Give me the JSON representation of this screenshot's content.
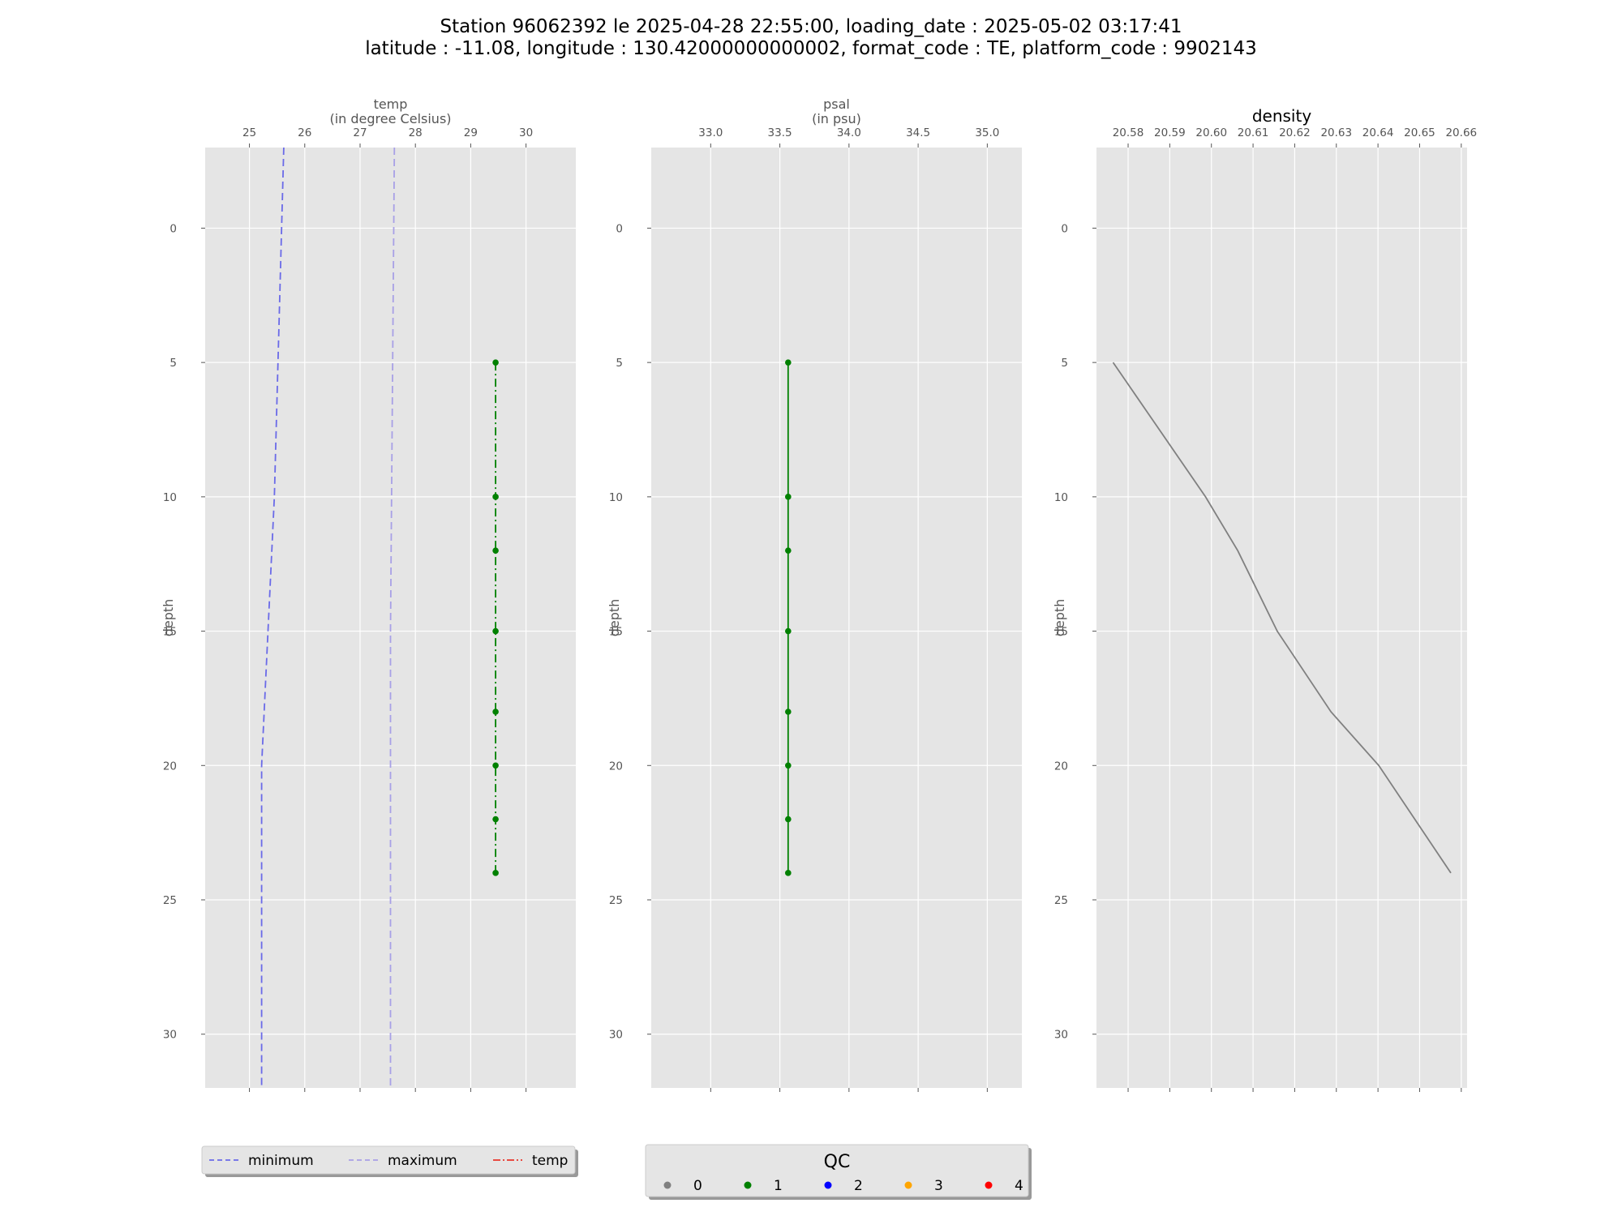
{
  "title_line1": "Station 96062392 le 2025-04-28 22:55:00, loading_date : 2025-05-02 03:17:41",
  "title_line2": "latitude : -11.08, longitude : 130.42000000000002, format_code : TE, platform_code : 9902143",
  "chart_data": [
    {
      "type": "line",
      "xlabel_line1": "temp",
      "xlabel_line2": "(in degree Celsius)",
      "ylabel": "depth",
      "xlim": [
        24.2,
        30.9
      ],
      "ylim": [
        32,
        -3
      ],
      "x_ticks": [
        25,
        26,
        27,
        28,
        29,
        30
      ],
      "x_tick_labels": [
        "25",
        "26",
        "27",
        "28",
        "29",
        "30"
      ],
      "y_ticks": [
        0,
        5,
        10,
        15,
        20,
        25,
        30
      ],
      "y_tick_labels": [
        "0",
        "5",
        "10",
        "15",
        "20",
        "25",
        "30"
      ],
      "grid": true,
      "series": [
        {
          "name": "minimum",
          "color": "#6a6ae8",
          "dash": "dashed",
          "x": [
            25.62,
            25.45,
            25.22,
            25.22
          ],
          "y": [
            -3,
            10,
            20,
            32
          ]
        },
        {
          "name": "maximum",
          "color": "#a8a0e6",
          "dash": "dashed",
          "x": [
            27.62,
            27.55,
            27.55
          ],
          "y": [
            -3,
            15,
            32
          ]
        },
        {
          "name": "temp",
          "color": "#008000",
          "dash": "dashdot",
          "markers": true,
          "x": [
            29.45,
            29.45,
            29.45,
            29.45,
            29.45,
            29.45,
            29.45,
            29.45
          ],
          "y": [
            5,
            10,
            12,
            15,
            18,
            20,
            22,
            24
          ]
        }
      ]
    },
    {
      "type": "line",
      "xlabel_line1": "psal",
      "xlabel_line2": "(in psu)",
      "ylabel": "depth",
      "xlim": [
        32.57,
        35.25
      ],
      "ylim": [
        32,
        -3
      ],
      "x_ticks": [
        33.0,
        33.5,
        34.0,
        34.5,
        35.0
      ],
      "x_tick_labels": [
        "33.0",
        "33.5",
        "34.0",
        "34.5",
        "35.0"
      ],
      "y_ticks": [
        0,
        5,
        10,
        15,
        20,
        25,
        30
      ],
      "y_tick_labels": [
        "0",
        "5",
        "10",
        "15",
        "20",
        "25",
        "30"
      ],
      "grid": true,
      "series": [
        {
          "name": "psal",
          "color": "#008000",
          "dash": "solid",
          "markers": true,
          "x": [
            33.56,
            33.56,
            33.56,
            33.56,
            33.56,
            33.56,
            33.56,
            33.56
          ],
          "y": [
            5,
            10,
            12,
            15,
            18,
            20,
            22,
            24
          ]
        }
      ]
    },
    {
      "type": "line",
      "title": "density",
      "ylabel": "depth",
      "xlim": [
        20.5724,
        20.6614
      ],
      "ylim": [
        32,
        -3
      ],
      "x_ticks": [
        20.58,
        20.59,
        20.6,
        20.61,
        20.62,
        20.63,
        20.64,
        20.65,
        20.66
      ],
      "x_tick_labels": [
        "20.58",
        "20.59",
        "20.60",
        "20.61",
        "20.62",
        "20.63",
        "20.64",
        "20.65",
        "20.66"
      ],
      "y_ticks": [
        0,
        5,
        10,
        15,
        20,
        25,
        30
      ],
      "y_tick_labels": [
        "0",
        "5",
        "10",
        "15",
        "20",
        "25",
        "30"
      ],
      "grid": true,
      "series": [
        {
          "name": "density",
          "color": "#808080",
          "dash": "solid",
          "markers": false,
          "x": [
            20.5764,
            20.5986,
            20.6063,
            20.6158,
            20.6287,
            20.6402,
            20.6575
          ],
          "y": [
            5,
            10,
            12,
            15,
            18,
            20,
            24
          ]
        }
      ]
    }
  ],
  "legend_lines": {
    "items": [
      {
        "label": "minimum",
        "color": "#6a6ae8",
        "dash": "dashed"
      },
      {
        "label": "maximum",
        "color": "#a8a0e6",
        "dash": "dashed"
      },
      {
        "label": "temp",
        "color": "#e8352a",
        "dash": "dashdot"
      }
    ]
  },
  "legend_qc": {
    "title": "QC",
    "items": [
      {
        "label": "0",
        "color": "#808080"
      },
      {
        "label": "1",
        "color": "#008000"
      },
      {
        "label": "2",
        "color": "#0000ff"
      },
      {
        "label": "3",
        "color": "#ffa500"
      },
      {
        "label": "4",
        "color": "#ff0000"
      }
    ]
  }
}
